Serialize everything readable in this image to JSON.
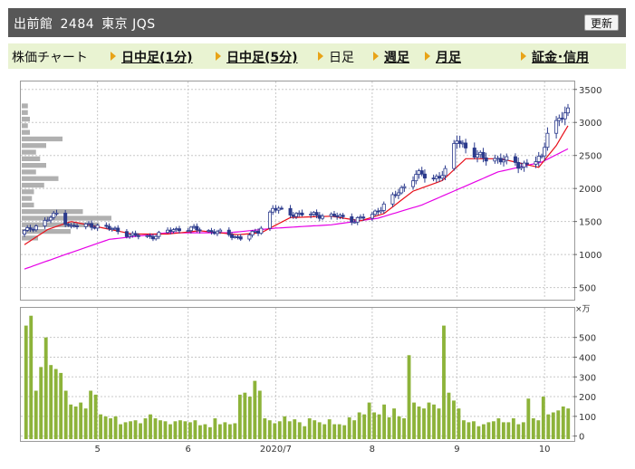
{
  "header": {
    "title": "出前館",
    "code": "2484",
    "market": "東京 JQS",
    "refresh_label": "更新"
  },
  "tabs": [
    {
      "label": "株価チャート",
      "link": false
    },
    {
      "label": "日中足(1分)",
      "link": true
    },
    {
      "label": "日中足(5分)",
      "link": true
    },
    {
      "label": "日足",
      "link": false
    },
    {
      "label": "週足",
      "link": true
    },
    {
      "label": "月足",
      "link": true
    },
    {
      "label": "証金･信用",
      "link": true
    }
  ],
  "colors": {
    "up_candle": "#ffffff",
    "down_candle": "#2b3a8c",
    "ma_short": "#e8101a",
    "ma_long": "#e600e6",
    "volume_bar": "#8db33a",
    "volume_profile": "#b0b0b0",
    "grid": "#c8c8c8"
  },
  "chart_data": [
    {
      "type": "candlestick",
      "title": "",
      "yticks": [
        "3500",
        "3000",
        "2500",
        "2000",
        "1500",
        "1000",
        "500"
      ],
      "ylim": [
        330,
        3620
      ],
      "grid": true,
      "x_start": "2020-04-06",
      "x_end": "2020-10-09",
      "x_ticks": [
        {
          "label": "5",
          "date": "2020-05-01"
        },
        {
          "label": "6",
          "date": "2020-06-01"
        },
        {
          "label": "2020/7",
          "date": "2020-07-01"
        },
        {
          "label": "8",
          "date": "2020-08-03"
        },
        {
          "label": "9",
          "date": "2020-09-01"
        },
        {
          "label": "10",
          "date": "2020-10-01"
        }
      ],
      "close_path": [
        {
          "date": "2020-04-06",
          "close": 1350
        },
        {
          "date": "2020-04-13",
          "close": 1500
        },
        {
          "date": "2020-04-17",
          "close": 1620
        },
        {
          "date": "2020-04-22",
          "close": 1420
        },
        {
          "date": "2020-04-28",
          "close": 1450
        },
        {
          "date": "2020-05-07",
          "close": 1380
        },
        {
          "date": "2020-05-12",
          "close": 1290
        },
        {
          "date": "2020-05-20",
          "close": 1270
        },
        {
          "date": "2020-05-27",
          "close": 1380
        },
        {
          "date": "2020-06-03",
          "close": 1390
        },
        {
          "date": "2020-06-12",
          "close": 1330
        },
        {
          "date": "2020-06-19",
          "close": 1250
        },
        {
          "date": "2020-06-25",
          "close": 1350
        },
        {
          "date": "2020-06-30",
          "close": 1700
        },
        {
          "date": "2020-07-06",
          "close": 1620
        },
        {
          "date": "2020-07-14",
          "close": 1600
        },
        {
          "date": "2020-07-22",
          "close": 1580
        },
        {
          "date": "2020-07-28",
          "close": 1520
        },
        {
          "date": "2020-08-03",
          "close": 1600
        },
        {
          "date": "2020-08-11",
          "close": 1900
        },
        {
          "date": "2020-08-18",
          "close": 2220
        },
        {
          "date": "2020-08-24",
          "close": 2150
        },
        {
          "date": "2020-08-28",
          "close": 2250
        },
        {
          "date": "2020-09-01",
          "close": 2750
        },
        {
          "date": "2020-09-08",
          "close": 2480
        },
        {
          "date": "2020-09-15",
          "close": 2450
        },
        {
          "date": "2020-09-23",
          "close": 2350
        },
        {
          "date": "2020-09-30",
          "close": 2450
        },
        {
          "date": "2020-10-02",
          "close": 2900
        },
        {
          "date": "2020-10-09",
          "close": 3150
        }
      ],
      "ma_short_path": [
        {
          "date": "2020-04-06",
          "value": 1150
        },
        {
          "date": "2020-04-14",
          "value": 1380
        },
        {
          "date": "2020-04-22",
          "value": 1500
        },
        {
          "date": "2020-05-01",
          "value": 1420
        },
        {
          "date": "2020-05-13",
          "value": 1310
        },
        {
          "date": "2020-05-25",
          "value": 1310
        },
        {
          "date": "2020-06-05",
          "value": 1360
        },
        {
          "date": "2020-06-18",
          "value": 1300
        },
        {
          "date": "2020-06-26",
          "value": 1330
        },
        {
          "date": "2020-07-06",
          "value": 1560
        },
        {
          "date": "2020-07-20",
          "value": 1580
        },
        {
          "date": "2020-07-30",
          "value": 1510
        },
        {
          "date": "2020-08-07",
          "value": 1620
        },
        {
          "date": "2020-08-17",
          "value": 1960
        },
        {
          "date": "2020-08-27",
          "value": 2120
        },
        {
          "date": "2020-09-04",
          "value": 2450
        },
        {
          "date": "2020-09-16",
          "value": 2450
        },
        {
          "date": "2020-09-29",
          "value": 2320
        },
        {
          "date": "2020-10-05",
          "value": 2650
        },
        {
          "date": "2020-10-09",
          "value": 2950
        }
      ],
      "ma_long_path": [
        {
          "date": "2020-04-06",
          "value": 780
        },
        {
          "date": "2020-04-20",
          "value": 1000
        },
        {
          "date": "2020-05-05",
          "value": 1230
        },
        {
          "date": "2020-05-25",
          "value": 1330
        },
        {
          "date": "2020-06-15",
          "value": 1330
        },
        {
          "date": "2020-07-01",
          "value": 1400
        },
        {
          "date": "2020-07-20",
          "value": 1450
        },
        {
          "date": "2020-08-05",
          "value": 1550
        },
        {
          "date": "2020-08-20",
          "value": 1750
        },
        {
          "date": "2020-09-01",
          "value": 1980
        },
        {
          "date": "2020-09-15",
          "value": 2250
        },
        {
          "date": "2020-09-30",
          "value": 2400
        },
        {
          "date": "2020-10-09",
          "value": 2600
        }
      ],
      "volume_profile": [
        {
          "price": 3250,
          "size": 0.15
        },
        {
          "price": 3150,
          "size": 0.15
        },
        {
          "price": 3050,
          "size": 0.2
        },
        {
          "price": 2950,
          "size": 0.15
        },
        {
          "price": 2850,
          "size": 0.2
        },
        {
          "price": 2750,
          "size": 1.0
        },
        {
          "price": 2650,
          "size": 0.6
        },
        {
          "price": 2550,
          "size": 0.35
        },
        {
          "price": 2450,
          "size": 0.45
        },
        {
          "price": 2350,
          "size": 0.6
        },
        {
          "price": 2250,
          "size": 0.35
        },
        {
          "price": 2150,
          "size": 0.9
        },
        {
          "price": 2050,
          "size": 0.55
        },
        {
          "price": 1950,
          "size": 0.3
        },
        {
          "price": 1850,
          "size": 0.25
        },
        {
          "price": 1750,
          "size": 0.3
        },
        {
          "price": 1650,
          "size": 1.5
        },
        {
          "price": 1550,
          "size": 2.2
        },
        {
          "price": 1450,
          "size": 1.9
        },
        {
          "price": 1350,
          "size": 1.2
        },
        {
          "price": 1250,
          "size": 0.4
        }
      ]
    },
    {
      "type": "bar",
      "title": "",
      "unit": "×万",
      "yticks": [
        "500",
        "400",
        "300",
        "200",
        "100",
        "0"
      ],
      "ylim": [
        -20,
        650
      ],
      "grid": true,
      "values": [
        560,
        610,
        230,
        350,
        500,
        360,
        340,
        320,
        230,
        160,
        150,
        170,
        140,
        230,
        210,
        110,
        100,
        90,
        100,
        60,
        70,
        75,
        80,
        65,
        90,
        110,
        90,
        80,
        75,
        60,
        75,
        80,
        75,
        70,
        80,
        55,
        60,
        45,
        90,
        60,
        70,
        60,
        65,
        210,
        220,
        200,
        280,
        230,
        90,
        80,
        65,
        75,
        100,
        75,
        85,
        70,
        50,
        90,
        80,
        70,
        60,
        85,
        60,
        60,
        55,
        95,
        80,
        120,
        110,
        170,
        120,
        110,
        160,
        95,
        140,
        100,
        90,
        410,
        170,
        150,
        140,
        170,
        160,
        140,
        560,
        220,
        180,
        140,
        80,
        70,
        75,
        50,
        60,
        70,
        75,
        90,
        70,
        70,
        90,
        60,
        70,
        190,
        90,
        80,
        200,
        110,
        120,
        130,
        150,
        140
      ]
    }
  ]
}
